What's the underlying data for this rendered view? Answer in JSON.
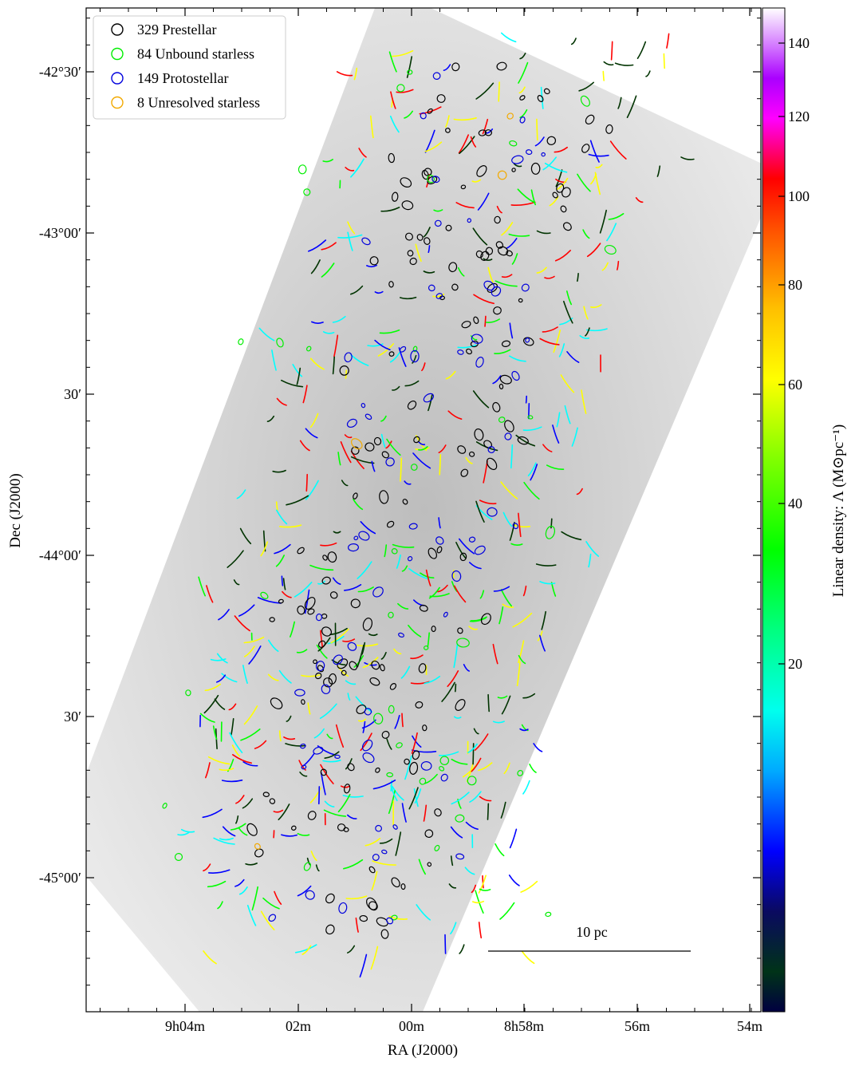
{
  "chart_data": {
    "type": "scatter",
    "title": "",
    "xlabel": "RA (J2000)",
    "ylabel": "Dec (J2000)",
    "colorbar_label": "Linear density: Λ (M⊙pc⁻¹)",
    "x_tick_labels": [
      "9h04m",
      "02m",
      "00m",
      "8h58m",
      "56m",
      "54m"
    ],
    "y_tick_labels": [
      "-42°30′",
      "-43°00′",
      "30′",
      "-44°00′",
      "30′",
      "-45°00′"
    ],
    "colorbar_ticks": [
      20,
      40,
      60,
      80,
      100,
      120,
      140
    ],
    "colorbar_range": [
      0,
      150
    ],
    "scale_bar_label": "10 pc",
    "legend_position": "top-left",
    "series": [
      {
        "name": "329 Prestellar",
        "count": 329,
        "color": "#000000"
      },
      {
        "name": "84 Unbound starless",
        "count": 84,
        "color": "#00ee00"
      },
      {
        "name": "149 Protostellar",
        "count": 149,
        "color": "#0000dd"
      },
      {
        "name": "8 Unresolved starless",
        "count": 8,
        "color": "#f2a900"
      }
    ]
  },
  "colors": {
    "colormap": [
      "#000033",
      "#003300",
      "#0000ff",
      "#00ffff",
      "#00ff00",
      "#ffff00",
      "#ff0000",
      "#ff00ff",
      "#ffffff"
    ],
    "background_map": "#dcdcdc"
  }
}
